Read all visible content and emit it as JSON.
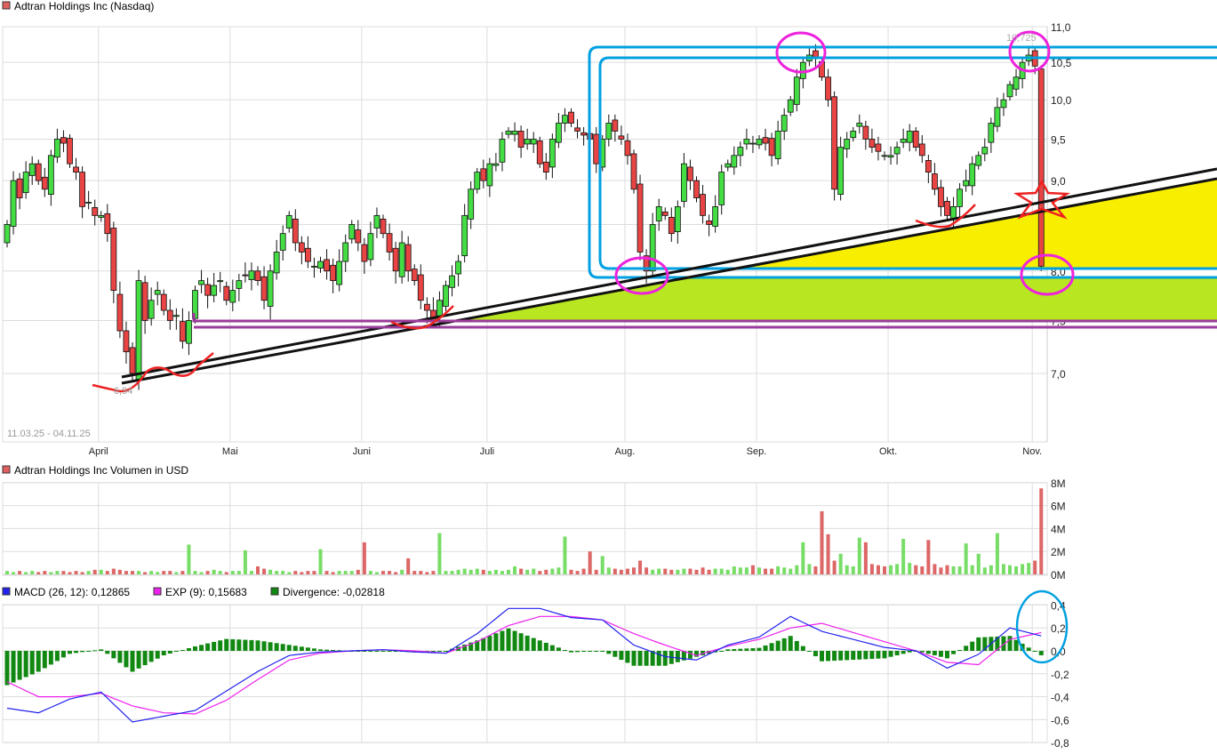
{
  "colors": {
    "up": "#44dd44",
    "down": "#e84444",
    "macd": "#2222ee",
    "signal": "#ee22ee",
    "divergence": "#118811",
    "grid": "#dddddd",
    "annotation_blue": "#00a0e0",
    "annotation_magenta": "#ee22dd",
    "annotation_red": "#ee2222",
    "fill_yellow": "#f8ee00",
    "fill_lime": "#b8e620",
    "purple": "#9b3b9b"
  },
  "chart_data": [
    {
      "type": "candlestick",
      "title": "Adtran Holdings Inc (Nasdaq)",
      "date_range": "11.03.25 - 04.11.25",
      "start_date": "2025-03-11",
      "y_scale": "log",
      "ylim": [
        6.6,
        11.05
      ],
      "y_ticks": [
        "11,0",
        "10,5",
        "10,0",
        "9,5",
        "9,0",
        "8,5",
        "8,0",
        "7,5",
        "7,0"
      ],
      "y_tick_values": [
        11.0,
        10.5,
        10.0,
        9.5,
        9.0,
        8.5,
        8.0,
        7.5,
        7.0
      ],
      "x_ticks": [
        "April",
        "Mai",
        "Juni",
        "Juli",
        "Aug.",
        "Sep.",
        "Okt.",
        "Nov."
      ],
      "annotations": {
        "low_label": "6,94",
        "low": 6.94,
        "high_label": "10,725",
        "high": 10.725
      },
      "grid": true,
      "closes": [
        8.5,
        9.0,
        8.8,
        9.1,
        9.2,
        9.0,
        8.9,
        9.3,
        9.5,
        9.45,
        9.2,
        9.1,
        8.7,
        8.75,
        8.6,
        8.6,
        8.4,
        7.8,
        7.4,
        7.2,
        7.0,
        7.9,
        7.5,
        7.7,
        7.8,
        7.6,
        7.5,
        7.55,
        7.3,
        7.5,
        7.8,
        7.9,
        7.75,
        7.85,
        7.9,
        7.7,
        7.8,
        7.9,
        7.95,
        8.0,
        7.9,
        7.7,
        8.0,
        8.2,
        8.4,
        8.6,
        8.3,
        8.2,
        8.1,
        8.05,
        8.1,
        8.0,
        7.9,
        8.1,
        8.3,
        8.5,
        8.3,
        8.1,
        8.4,
        8.6,
        8.4,
        8.2,
        8.0,
        8.3,
        8.0,
        7.9,
        7.7,
        7.6,
        7.5,
        7.7,
        7.85,
        7.95,
        8.1,
        8.6,
        8.9,
        9.1,
        9.0,
        9.2,
        9.2,
        9.5,
        9.6,
        9.6,
        9.4,
        9.5,
        9.5,
        9.2,
        9.1,
        9.5,
        9.7,
        9.8,
        9.7,
        9.6,
        9.55,
        9.5,
        9.2,
        9.5,
        9.7,
        9.6,
        9.5,
        9.3,
        8.9,
        8.2,
        8.0,
        8.5,
        8.7,
        8.6,
        8.4,
        8.7,
        9.2,
        9.0,
        8.8,
        8.6,
        8.5,
        8.7,
        9.1,
        9.2,
        9.3,
        9.4,
        9.5,
        9.45,
        9.5,
        9.45,
        9.3,
        9.6,
        9.8,
        10.0,
        10.3,
        10.5,
        10.6,
        10.55,
        10.3,
        10.0,
        8.9,
        9.4,
        9.5,
        9.6,
        9.7,
        9.5,
        9.4,
        9.35,
        9.3,
        9.3,
        9.4,
        9.5,
        9.6,
        9.4,
        9.3,
        9.1,
        8.9,
        8.7,
        8.6,
        8.7,
        8.9,
        9.0,
        9.2,
        9.3,
        9.4,
        9.7,
        9.9,
        10.0,
        10.2,
        10.3,
        10.5,
        10.6,
        10.45,
        8.05
      ]
    },
    {
      "type": "bar",
      "title": "Adtran Holdings Inc Volumen in USD",
      "unit": "M",
      "ylim": [
        0,
        8
      ],
      "y_ticks": [
        "8M",
        "6M",
        "4M",
        "2M",
        "0M"
      ],
      "y_tick_values": [
        8,
        6,
        4,
        2,
        0
      ],
      "values": [
        0.3,
        0.2,
        0.3,
        0.2,
        0.3,
        0.2,
        0.3,
        0.2,
        0.3,
        0.3,
        0.2,
        0.3,
        0.2,
        0.3,
        0.4,
        0.4,
        0.3,
        0.5,
        0.4,
        0.3,
        0.3,
        0.3,
        0.2,
        0.3,
        0.2,
        0.3,
        0.3,
        0.2,
        0.3,
        2.6,
        0.3,
        0.2,
        0.3,
        0.4,
        0.3,
        0.2,
        0.3,
        0.3,
        2.1,
        0.3,
        0.7,
        0.5,
        0.4,
        0.3,
        0.3,
        0.2,
        0.3,
        0.2,
        0.3,
        0.3,
        2.2,
        0.3,
        0.2,
        0.3,
        0.3,
        0.3,
        0.4,
        2.8,
        0.3,
        0.2,
        0.3,
        0.3,
        0.2,
        0.4,
        1.4,
        0.3,
        0.3,
        0.2,
        0.3,
        3.6,
        0.3,
        0.3,
        0.4,
        0.5,
        0.4,
        0.5,
        0.4,
        0.3,
        0.4,
        0.3,
        0.4,
        0.7,
        0.5,
        0.4,
        0.5,
        0.3,
        0.4,
        0.5,
        0.6,
        3.3,
        0.4,
        0.3,
        0.5,
        2.0,
        0.4,
        1.6,
        0.6,
        0.5,
        0.4,
        0.5,
        0.6,
        1.2,
        0.6,
        0.4,
        0.5,
        0.5,
        0.4,
        0.4,
        0.5,
        0.5,
        0.4,
        0.6,
        0.4,
        0.5,
        0.5,
        0.4,
        0.7,
        0.6,
        0.6,
        0.8,
        0.6,
        0.5,
        0.5,
        0.7,
        0.6,
        0.5,
        0.8,
        2.8,
        0.9,
        0.7,
        5.5,
        3.5,
        1.2,
        1.8,
        0.8,
        0.7,
        3.2,
        2.8,
        0.9,
        0.8,
        0.7,
        0.8,
        0.9,
        3.1,
        1.0,
        0.8,
        0.7,
        3.0,
        0.9,
        0.6,
        0.8,
        0.7,
        0.7,
        2.7,
        0.8,
        1.8,
        0.6,
        0.8,
        3.6,
        0.9,
        0.8,
        0.7,
        0.9,
        1.0,
        1.2,
        7.5
      ]
    },
    {
      "type": "line",
      "legend": [
        {
          "name": "MACD (26, 12): 0,12865",
          "color": "#2222ee"
        },
        {
          "name": "EXP (9): 0,15683",
          "color": "#ee22ee"
        },
        {
          "name": "Divergence: -0,02818",
          "color": "#118811"
        }
      ],
      "ylim": [
        -0.8,
        0.42
      ],
      "y_ticks": [
        "0,4",
        "0,2",
        "0,0",
        "-0,2",
        "-0,4",
        "-0,6",
        "-0,8"
      ],
      "y_tick_values": [
        0.4,
        0.2,
        0.0,
        -0.2,
        -0.4,
        -0.6,
        -0.8
      ],
      "sample_every_trading_days": 5,
      "macd": [
        -0.5,
        -0.54,
        -0.42,
        -0.36,
        -0.62,
        -0.57,
        -0.52,
        -0.35,
        -0.18,
        -0.04,
        -0.01,
        0.0,
        0.01,
        -0.01,
        -0.02,
        0.15,
        0.37,
        0.37,
        0.29,
        0.27,
        0.05,
        -0.05,
        -0.08,
        0.05,
        0.12,
        0.3,
        0.17,
        0.1,
        0.03,
        0.0,
        -0.15,
        -0.03,
        0.2,
        0.13
      ],
      "signal": [
        -0.27,
        -0.4,
        -0.4,
        -0.37,
        -0.48,
        -0.54,
        -0.55,
        -0.43,
        -0.25,
        -0.08,
        -0.02,
        0.0,
        0.01,
        0.0,
        -0.02,
        0.08,
        0.22,
        0.3,
        0.3,
        0.27,
        0.15,
        0.05,
        -0.04,
        0.04,
        0.1,
        0.2,
        0.24,
        0.16,
        0.08,
        0.0,
        -0.1,
        -0.12,
        0.1,
        0.16
      ]
    }
  ]
}
